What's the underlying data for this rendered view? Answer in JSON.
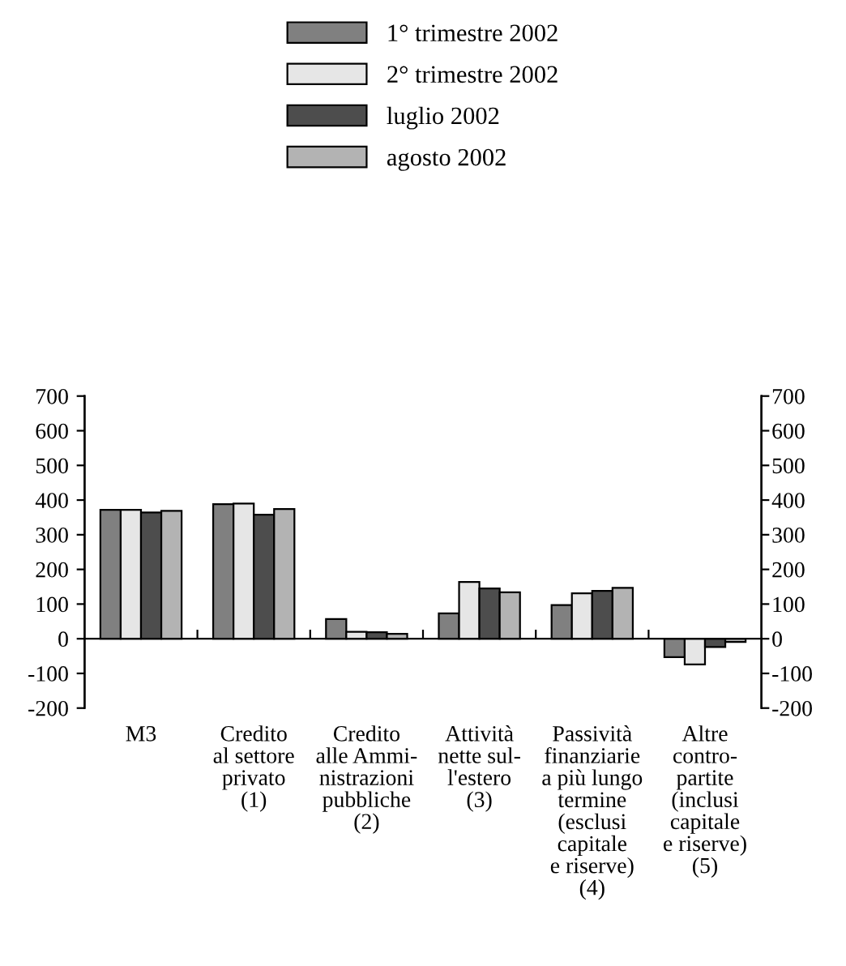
{
  "chart_data": {
    "type": "bar",
    "categories": [
      "M3",
      "Credito\nal settore\nprivato\n(1)",
      "Credito\nalle Ammi-\nnistrazioni\npubbliche\n(2)",
      "Attività\nnette sul-\nl'estero\n(3)",
      "Passività\nfinanziarie\na più lungo\ntermine\n(esclusi\ncapitale\ne riserve)\n(4)",
      "Altre\ncontro-\npartite\n(inclusi\ncapitale\ne riserve)\n(5)"
    ],
    "series": [
      {
        "name": "1° trimestre 2002",
        "color": "#808080",
        "values": [
          372,
          388,
          57,
          73,
          97,
          -53
        ]
      },
      {
        "name": "2° trimestre 2002",
        "color": "#e6e6e6",
        "values": [
          372,
          390,
          20,
          164,
          131,
          -74
        ]
      },
      {
        "name": "luglio 2002",
        "color": "#4d4d4d",
        "values": [
          364,
          358,
          19,
          145,
          138,
          -24
        ]
      },
      {
        "name": "agosto 2002",
        "color": "#b3b3b3",
        "values": [
          369,
          374,
          14,
          134,
          147,
          -9
        ]
      }
    ],
    "ylim": [
      -200,
      700
    ],
    "yticks": [
      -200,
      -100,
      0,
      100,
      200,
      300,
      400,
      500,
      600,
      700
    ],
    "y2lim": [
      -200,
      700
    ],
    "y2ticks": [
      -200,
      -100,
      0,
      100,
      200,
      300,
      400,
      500,
      600,
      700
    ],
    "legend": "top"
  }
}
